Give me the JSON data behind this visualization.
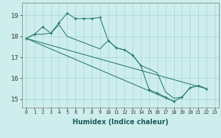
{
  "xlabel": "Humidex (Indice chaleur)",
  "background_color": "#cdeeed",
  "line_color": "#2a7a6a",
  "grid_color": "#aad8d8",
  "xlim": [
    -0.5,
    23.5
  ],
  "ylim": [
    14.6,
    19.6
  ],
  "yticks": [
    15,
    16,
    17,
    18,
    19
  ],
  "xticks": [
    0,
    1,
    2,
    3,
    4,
    5,
    6,
    7,
    8,
    9,
    10,
    11,
    12,
    13,
    14,
    15,
    16,
    17,
    18,
    19,
    20,
    21,
    22,
    23
  ],
  "series": [
    {
      "x": [
        0,
        1,
        2,
        3,
        4,
        5,
        6,
        7,
        8,
        9,
        10,
        11,
        12,
        13,
        14,
        15,
        16,
        17,
        18,
        19,
        20,
        21,
        22
      ],
      "y": [
        17.9,
        18.1,
        18.45,
        18.15,
        18.65,
        19.1,
        18.85,
        18.85,
        18.85,
        18.9,
        17.8,
        17.45,
        17.35,
        17.1,
        16.6,
        15.45,
        15.3,
        15.1,
        14.9,
        15.1,
        15.55,
        15.65,
        15.5
      ],
      "marker": true
    },
    {
      "x": [
        0,
        1,
        2,
        3,
        4,
        5,
        6,
        7,
        8,
        9,
        10,
        11,
        12,
        13,
        14,
        15,
        16,
        17,
        18,
        19,
        20,
        21,
        22
      ],
      "y": [
        17.9,
        18.1,
        18.1,
        18.15,
        18.55,
        18.0,
        17.85,
        17.7,
        17.55,
        17.4,
        17.8,
        17.45,
        17.35,
        17.1,
        16.6,
        16.45,
        16.25,
        15.35,
        15.05,
        15.1,
        15.55,
        15.65,
        15.5
      ],
      "marker": false
    },
    {
      "x": [
        0,
        22
      ],
      "y": [
        17.9,
        15.5
      ],
      "marker": false
    },
    {
      "x": [
        0,
        18
      ],
      "y": [
        17.9,
        14.9
      ],
      "marker": false
    }
  ]
}
